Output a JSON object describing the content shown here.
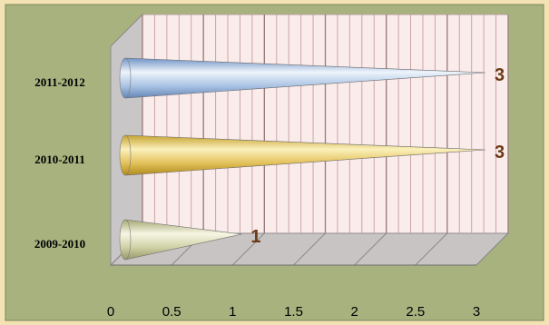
{
  "chart_data": {
    "type": "bar",
    "style": "3d-horizontal-cone",
    "categories": [
      "2011-2012",
      "2010-2011",
      "2009-2010"
    ],
    "values": [
      3,
      3,
      1
    ],
    "data_labels": [
      "3",
      "3",
      "1"
    ],
    "xlim": [
      0,
      3
    ],
    "xticks": [
      "0",
      "0.5",
      "1",
      "1.5",
      "2",
      "2.5",
      "3"
    ],
    "grid": true,
    "legend": "none",
    "title": "",
    "xlabel": "",
    "ylabel": "",
    "colors": {
      "outer_frame": "#f3e2b4",
      "plot_background": "#a8b27f",
      "wall": "#fbecec",
      "gridline": "#9a7a7a",
      "floor": "#c8c4c4",
      "side_wall": "#c8c6c6",
      "label_text": "#000000",
      "data_label_text": "#6b3a16",
      "series": [
        "#8fb0d8",
        "#e2c35e",
        "#c7c8a0"
      ]
    }
  }
}
